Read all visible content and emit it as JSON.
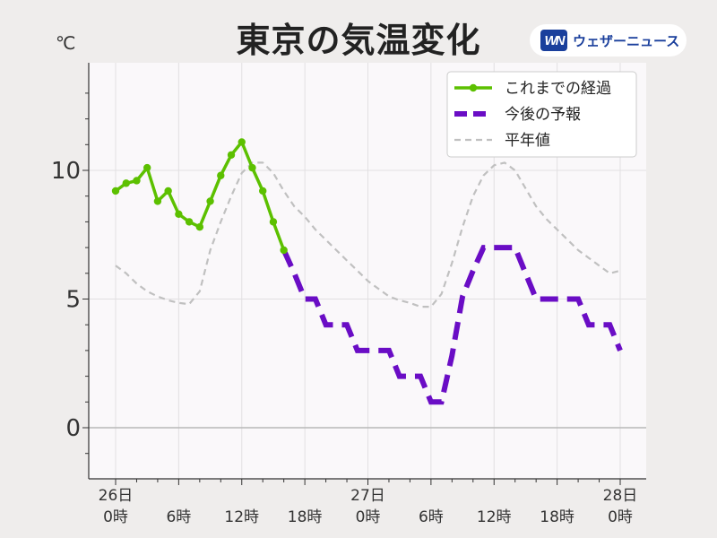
{
  "title": "東京の気温変化",
  "unit": "℃",
  "brand": {
    "mark": "WN",
    "name": "ウェザーニュース"
  },
  "colors": {
    "observed": "#5cc000",
    "forecast": "#6a0dc5",
    "normal": "#c0c0c0",
    "brand": "#1a3f9c"
  },
  "legend": {
    "observed": "これまでの経過",
    "forecast": "今後の予報",
    "normal": "平年値"
  },
  "chart_data": {
    "type": "line",
    "title": "東京の気温変化",
    "ylabel": "℃",
    "xlim": [
      0,
      48
    ],
    "ylim": [
      -2,
      14
    ],
    "grid": true,
    "legend_position": "top-right",
    "x_ticks": [
      {
        "x": 0,
        "line1": "26日",
        "line2": "0時"
      },
      {
        "x": 6,
        "line1": "",
        "line2": "6時"
      },
      {
        "x": 12,
        "line1": "",
        "line2": "12時"
      },
      {
        "x": 18,
        "line1": "",
        "line2": "18時"
      },
      {
        "x": 24,
        "line1": "27日",
        "line2": "0時"
      },
      {
        "x": 30,
        "line1": "",
        "line2": "6時"
      },
      {
        "x": 36,
        "line1": "",
        "line2": "12時"
      },
      {
        "x": 42,
        "line1": "",
        "line2": "18時"
      },
      {
        "x": 48,
        "line1": "28日",
        "line2": "0時"
      }
    ],
    "y_ticks": [
      0,
      5,
      10
    ],
    "series": [
      {
        "name": "これまでの経過",
        "style": "solid-markers",
        "x": [
          0,
          1,
          2,
          3,
          4,
          5,
          6,
          7,
          8,
          9,
          10,
          11,
          12,
          13,
          14,
          15,
          16
        ],
        "y": [
          9.2,
          9.5,
          9.6,
          10.1,
          8.8,
          9.2,
          8.3,
          8.0,
          7.8,
          8.8,
          9.8,
          10.6,
          11.1,
          10.1,
          9.2,
          8.0,
          6.9
        ]
      },
      {
        "name": "今後の予報",
        "style": "dashed-thick",
        "x": [
          16,
          17,
          18,
          19,
          20,
          21,
          22,
          23,
          24,
          25,
          26,
          27,
          28,
          29,
          30,
          31,
          32,
          33,
          34,
          35,
          36,
          37,
          38,
          39,
          40,
          41,
          42,
          43,
          44,
          45,
          46,
          47,
          48
        ],
        "y": [
          6.9,
          6.0,
          5.0,
          5.0,
          4.0,
          4.0,
          4.0,
          3.0,
          3.0,
          3.0,
          3.0,
          2.0,
          2.0,
          2.0,
          1.0,
          1.0,
          2.8,
          5.1,
          6.1,
          7.0,
          7.0,
          7.0,
          7.0,
          6.0,
          5.0,
          5.0,
          5.0,
          5.0,
          5.0,
          4.0,
          4.0,
          4.0,
          3.0
        ]
      },
      {
        "name": "平年値",
        "style": "dashed-thin",
        "x": [
          0,
          1,
          2,
          3,
          4,
          5,
          6,
          7,
          8,
          9,
          10,
          11,
          12,
          13,
          14,
          15,
          16,
          17,
          18,
          19,
          20,
          21,
          22,
          23,
          24,
          25,
          26,
          27,
          28,
          29,
          30,
          31,
          32,
          33,
          34,
          35,
          36,
          37,
          38,
          39,
          40,
          41,
          42,
          43,
          44,
          45,
          46,
          47,
          48
        ],
        "y": [
          6.3,
          6.0,
          5.6,
          5.3,
          5.1,
          4.95,
          4.85,
          4.8,
          5.3,
          6.9,
          8.0,
          9.0,
          9.9,
          10.3,
          10.3,
          9.9,
          9.2,
          8.6,
          8.2,
          7.7,
          7.3,
          6.9,
          6.5,
          6.1,
          5.7,
          5.4,
          5.1,
          4.95,
          4.85,
          4.7,
          4.7,
          5.2,
          6.4,
          7.8,
          9.0,
          9.8,
          10.2,
          10.3,
          10.0,
          9.3,
          8.6,
          8.1,
          7.7,
          7.3,
          6.9,
          6.6,
          6.3,
          6.0,
          6.1
        ]
      }
    ]
  }
}
